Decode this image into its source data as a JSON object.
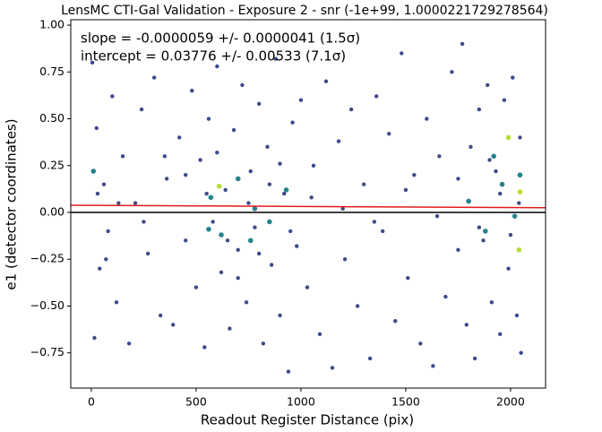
{
  "chart_data": {
    "type": "scatter",
    "title": "LensMC CTI-Gal Validation - Exposure 2 - snr (-1e+99, 1.0000221729278564)",
    "x_label": "Readout Register Distance (pix)",
    "y_label": "e1 (detector coordinates)",
    "annotations": [
      "slope = -0.0000059 +/- 0.0000041 (1.5σ)",
      "intercept = 0.03776 +/- 0.00533 (7.1σ)"
    ],
    "xlim": [
      -98,
      2167
    ],
    "ylim": [
      -0.938,
      1.029
    ],
    "xticks": [
      0,
      500,
      1000,
      1500,
      2000
    ],
    "yticks": [
      {
        "value": -0.75,
        "label": "−0.75"
      },
      {
        "value": -0.5,
        "label": "−0.50"
      },
      {
        "value": -0.25,
        "label": "−0.25"
      },
      {
        "value": 0,
        "label": "0.00"
      },
      0.25,
      {
        "value": 0.5,
        "label": "0.50"
      },
      0.75,
      {
        "value": 1,
        "label": "1.00"
      }
    ],
    "zero_line": {
      "value": 0,
      "color": "#000000"
    },
    "fit_line": {
      "color": "#e31a1c",
      "x": [
        -98,
        2167
      ],
      "values": [
        0.0383,
        0.025
      ]
    },
    "series": [
      {
        "color": "#3e4a89",
        "x": [
          5,
          15,
          25,
          40,
          60,
          80,
          100,
          120,
          150,
          180,
          210,
          240,
          270,
          300,
          330,
          360,
          390,
          420,
          450,
          480,
          500,
          520,
          540,
          560,
          580,
          600,
          620,
          640,
          660,
          680,
          700,
          720,
          740,
          760,
          780,
          800,
          820,
          840,
          860,
          880,
          900,
          920,
          940,
          960,
          980,
          1000,
          1030,
          1060,
          1090,
          1120,
          1150,
          1180,
          1210,
          1240,
          1270,
          1300,
          1330,
          1360,
          1390,
          1420,
          1450,
          1480,
          1510,
          1540,
          1570,
          1600,
          1630,
          1660,
          1690,
          1720,
          1750,
          1770,
          1790,
          1810,
          1830,
          1850,
          1870,
          1890,
          1910,
          1930,
          1950,
          1970,
          1990,
          2010,
          2030,
          2045,
          2050,
          30,
          70,
          130,
          250,
          350,
          450,
          550,
          650,
          750,
          850,
          950,
          1050,
          1200,
          1350,
          1500,
          1650,
          1750,
          1850,
          1950,
          2040,
          2000,
          1900,
          600,
          700,
          800,
          900
        ],
        "values": [
          0.8,
          -0.67,
          0.45,
          -0.3,
          0.15,
          -0.1,
          0.62,
          -0.48,
          0.3,
          -0.7,
          0.05,
          0.55,
          -0.22,
          0.72,
          -0.55,
          0.18,
          -0.6,
          0.4,
          -0.15,
          0.65,
          -0.4,
          0.28,
          -0.72,
          0.5,
          -0.05,
          0.78,
          -0.32,
          0.12,
          -0.62,
          0.44,
          -0.2,
          0.68,
          -0.48,
          0.22,
          -0.08,
          0.58,
          -0.7,
          0.35,
          -0.28,
          0.82,
          -0.55,
          0.1,
          -0.85,
          0.48,
          -0.18,
          0.6,
          -0.4,
          0.25,
          -0.65,
          0.7,
          -0.83,
          0.38,
          -0.25,
          0.55,
          -0.5,
          0.15,
          -0.78,
          0.62,
          -0.1,
          0.42,
          -0.58,
          0.85,
          -0.35,
          0.2,
          -0.7,
          0.5,
          -0.82,
          0.3,
          -0.45,
          0.75,
          -0.2,
          0.9,
          -0.6,
          0.35,
          -0.78,
          0.55,
          -0.15,
          0.68,
          -0.48,
          0.22,
          -0.65,
          0.6,
          -0.3,
          0.72,
          -0.55,
          0.4,
          -0.75,
          0.1,
          -0.25,
          0.05,
          -0.05,
          0.3,
          0.2,
          0.1,
          -0.15,
          0.05,
          0.15,
          -0.1,
          0.08,
          0.02,
          -0.05,
          0.12,
          -0.02,
          0.18,
          -0.08,
          0.1,
          0.05,
          -0.12,
          0.28,
          0.32,
          -0.35,
          -0.22,
          0.26
        ]
      },
      {
        "color": "#26828e",
        "x": [
          570,
          620,
          700,
          780,
          850,
          930,
          1800,
          1880,
          1960,
          2020,
          2045,
          10,
          560,
          760,
          1920
        ],
        "values": [
          0.08,
          -0.12,
          0.18,
          0.02,
          -0.05,
          0.12,
          0.06,
          -0.1,
          0.15,
          -0.02,
          0.2,
          0.22,
          -0.09,
          -0.15,
          0.3
        ]
      },
      {
        "color": "#b5de2b",
        "x": [
          2045,
          2040,
          1990,
          610
        ],
        "values": [
          0.11,
          -0.2,
          0.4,
          0.14
        ]
      }
    ]
  }
}
